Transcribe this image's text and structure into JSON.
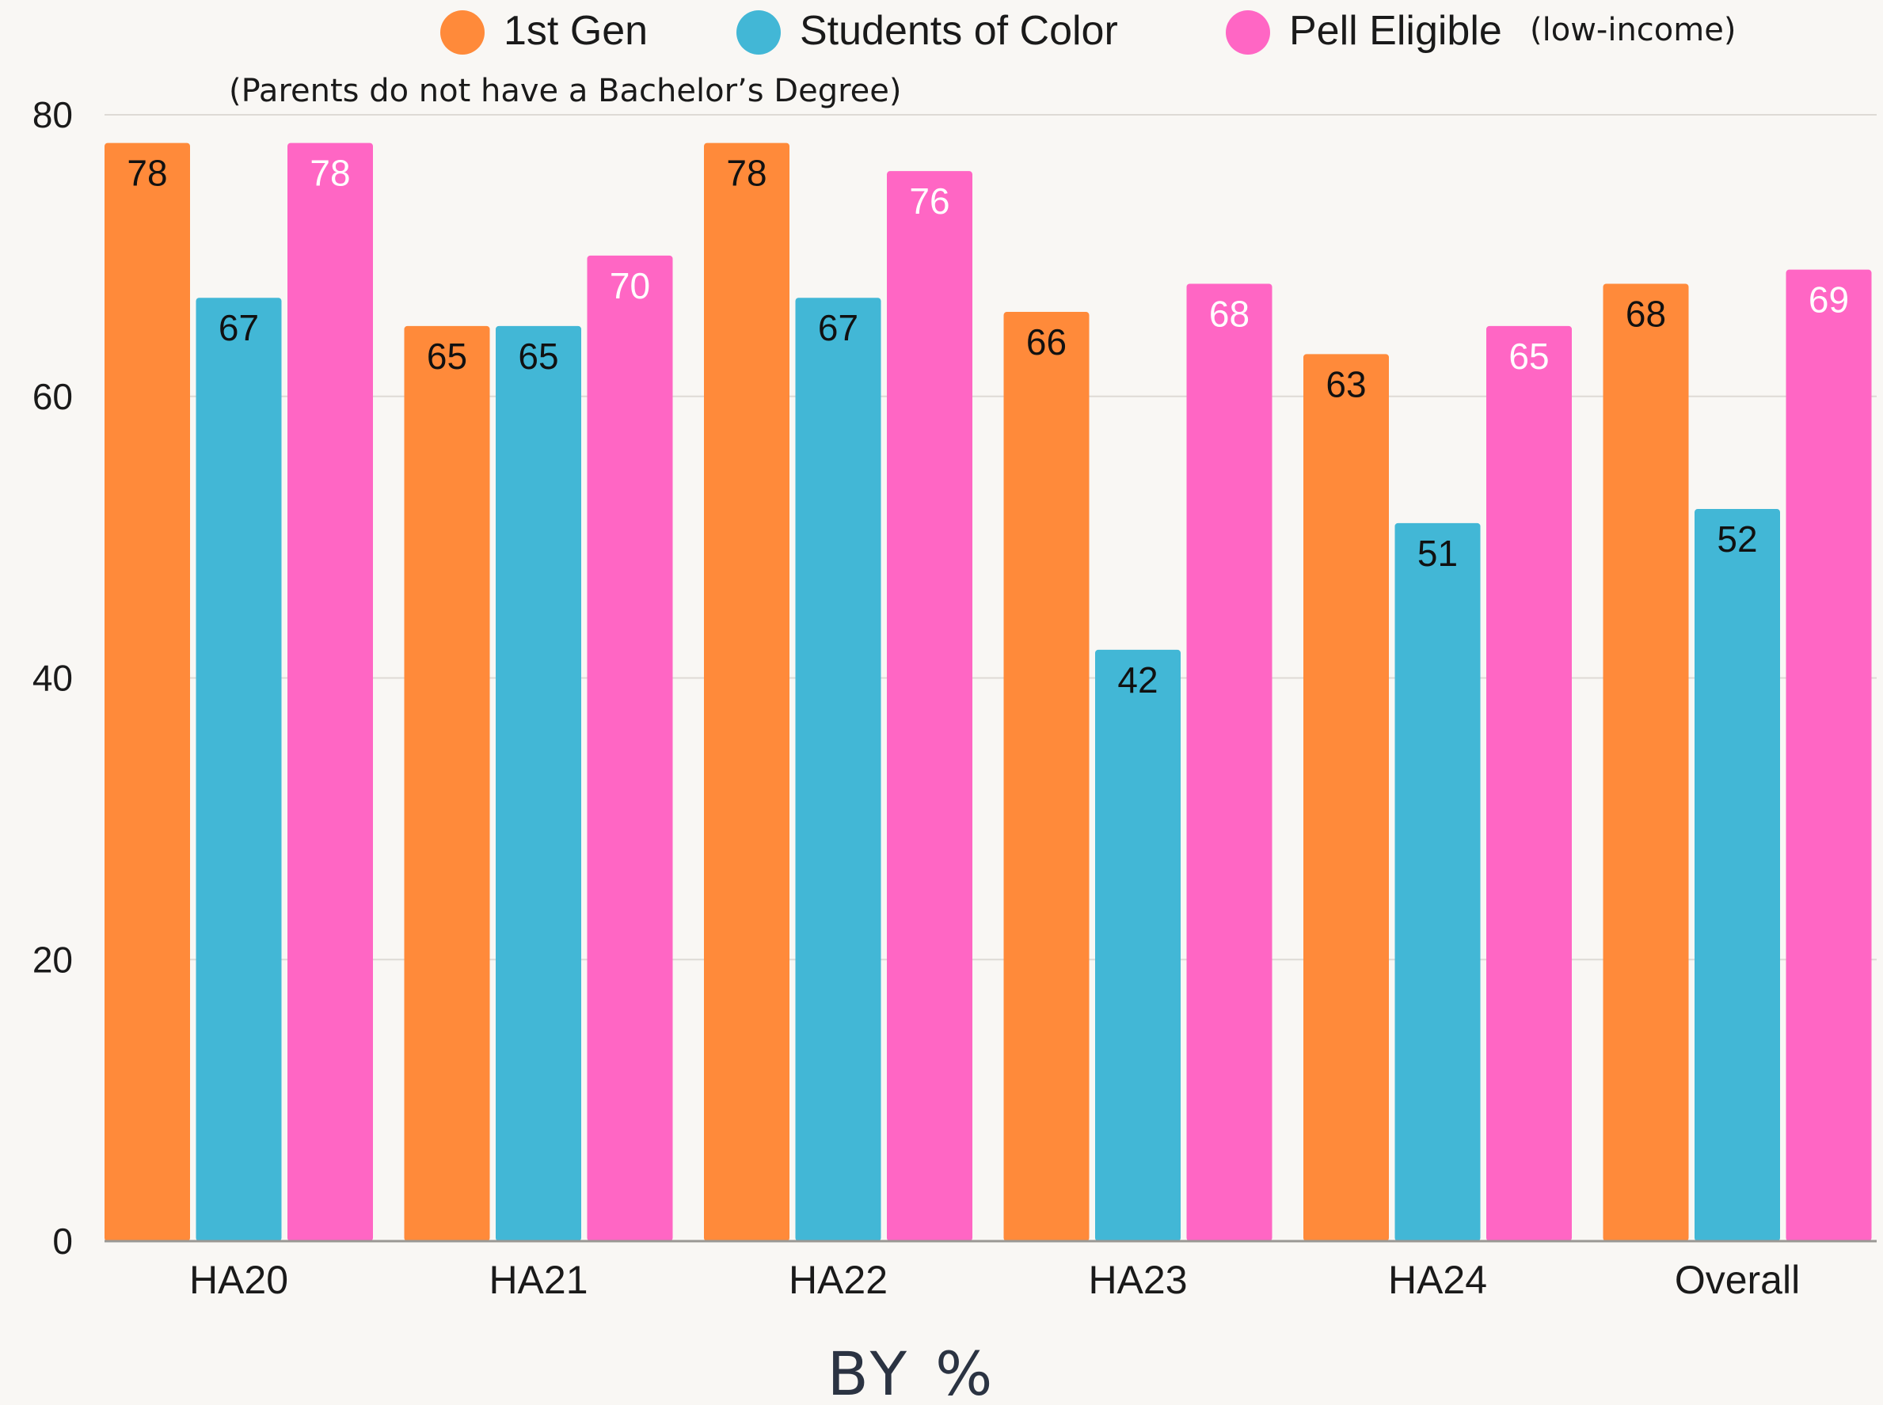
{
  "chart_data": {
    "type": "bar",
    "categories": [
      "HA20",
      "HA21",
      "HA22",
      "HA23",
      "HA24",
      "Overall"
    ],
    "series": [
      {
        "name": "1st Gen",
        "note": "(Parents do not have a Bachelor’s Degree)",
        "color": "#ff8a3a",
        "label_color": "#111111",
        "values": [
          78,
          65,
          78,
          66,
          63,
          68
        ]
      },
      {
        "name": "Students of Color",
        "note": "",
        "color": "#42b7d6",
        "label_color": "#111111",
        "values": [
          67,
          65,
          67,
          42,
          51,
          52
        ]
      },
      {
        "name": "Pell Eligible",
        "note": "(low-income)",
        "color": "#ff66c4",
        "label_color": "#ffffff",
        "values": [
          78,
          70,
          76,
          68,
          65,
          69
        ]
      }
    ],
    "ylim": [
      0,
      80
    ],
    "yticks": [
      "0",
      "20",
      "40",
      "60",
      "80"
    ],
    "xlabel": "BY %",
    "grid": true,
    "legend_position": "top"
  }
}
